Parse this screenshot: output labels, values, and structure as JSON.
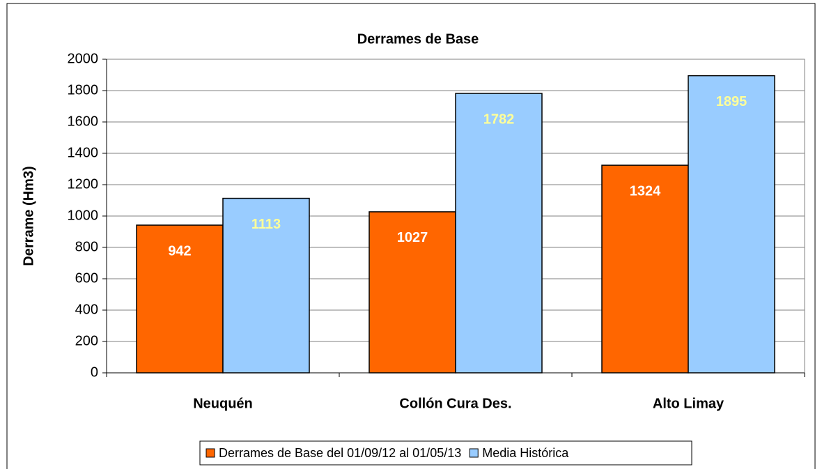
{
  "chart_data": {
    "type": "bar",
    "title": "Derrames de Base",
    "y_label": "Derrame (Hm3)",
    "categories": [
      "Neuquén",
      "Collón Cura Des.",
      "Alto Limay"
    ],
    "series": [
      {
        "name": "Derrames de Base del 01/09/12 al 01/05/13",
        "color": "#ff6600",
        "label_color": "#ffffff",
        "values": [
          942,
          1027,
          1324
        ]
      },
      {
        "name": "Media Histórica",
        "color": "#99ccff",
        "label_color": "#ffff99",
        "values": [
          1113,
          1782,
          1895
        ]
      }
    ],
    "ylim": [
      0,
      2000
    ],
    "yticks": [
      0,
      200,
      400,
      600,
      800,
      1000,
      1200,
      1400,
      1600,
      1800,
      2000
    ],
    "grid": true,
    "legend": "bottom"
  }
}
